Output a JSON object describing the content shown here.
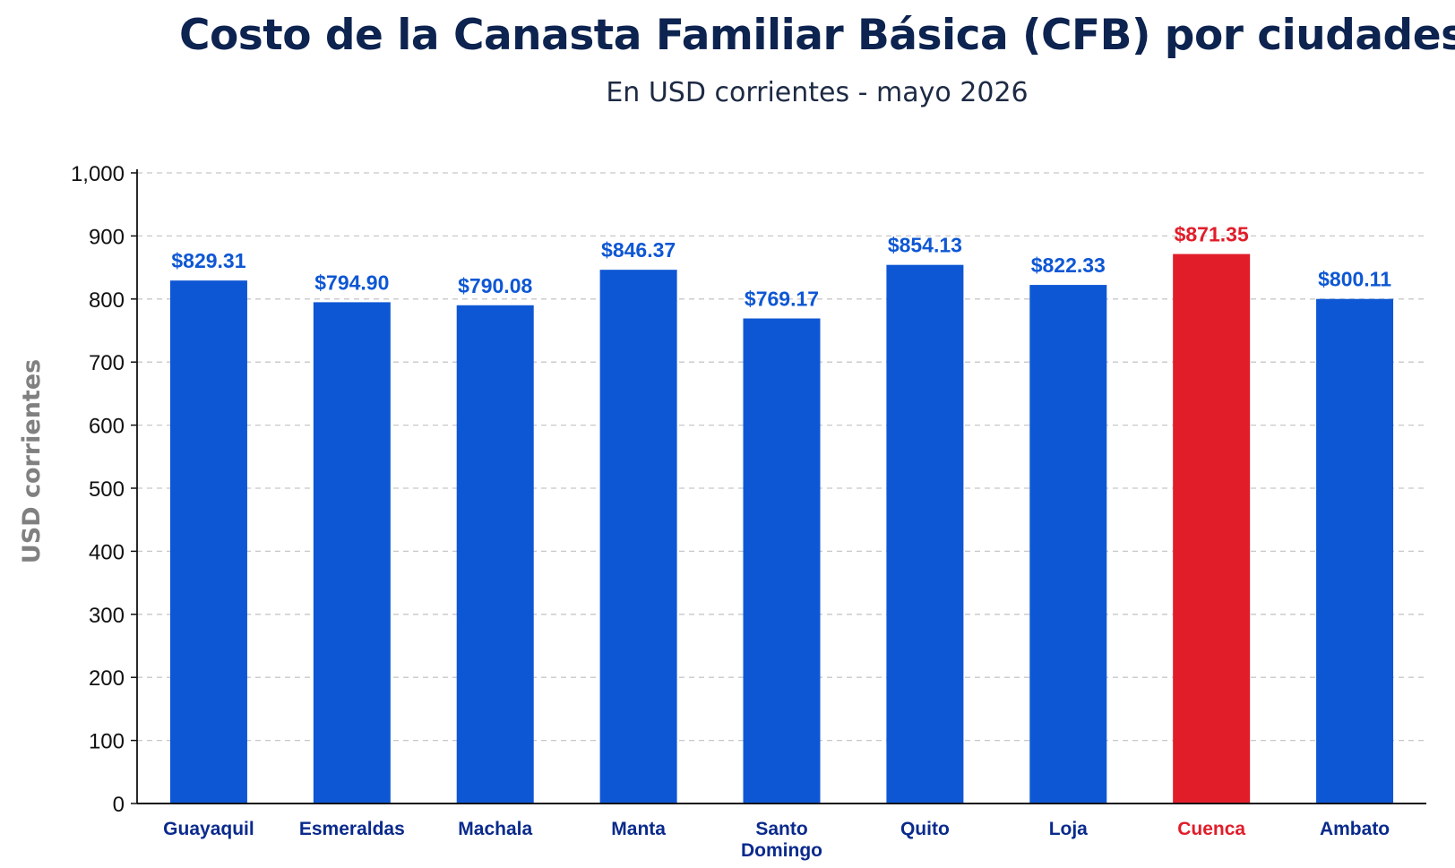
{
  "chart_data": {
    "type": "bar",
    "title": "Costo de la Canasta Familiar Básica (CFB) por ciudades",
    "subtitle": "En USD corrientes - mayo 2026",
    "ylabel": "USD corrientes",
    "xlabel": "",
    "ylim": [
      0,
      1000
    ],
    "yticks": [
      0,
      100,
      200,
      300,
      400,
      500,
      600,
      700,
      800,
      900,
      1000
    ],
    "ytick_labels": [
      "0",
      "100",
      "200",
      "300",
      "400",
      "500",
      "600",
      "700",
      "800",
      "900",
      "1,000"
    ],
    "grid": "horizontal dashed",
    "categories": [
      "Guayaquil",
      "Esmeraldas",
      "Machala",
      "Manta",
      "Santo Domingo",
      "Quito",
      "Loja",
      "Cuenca",
      "Ambato"
    ],
    "values": [
      829.31,
      794.9,
      790.08,
      846.37,
      769.17,
      854.13,
      822.33,
      871.35,
      800.11
    ],
    "value_labels": [
      "$829.31",
      "$794.90",
      "$790.08",
      "$846.37",
      "$769.17",
      "$854.13",
      "$822.33",
      "$871.35",
      "$800.11"
    ],
    "highlight": "Cuenca",
    "colors": {
      "bar": "#0e57d4",
      "highlight": "#e11d2a",
      "category_text": "#0a2a8c",
      "value_text": "#0e57d4",
      "highlight_text": "#e11d2a",
      "grid": "#c8c8c8",
      "axis": "#111111"
    }
  }
}
